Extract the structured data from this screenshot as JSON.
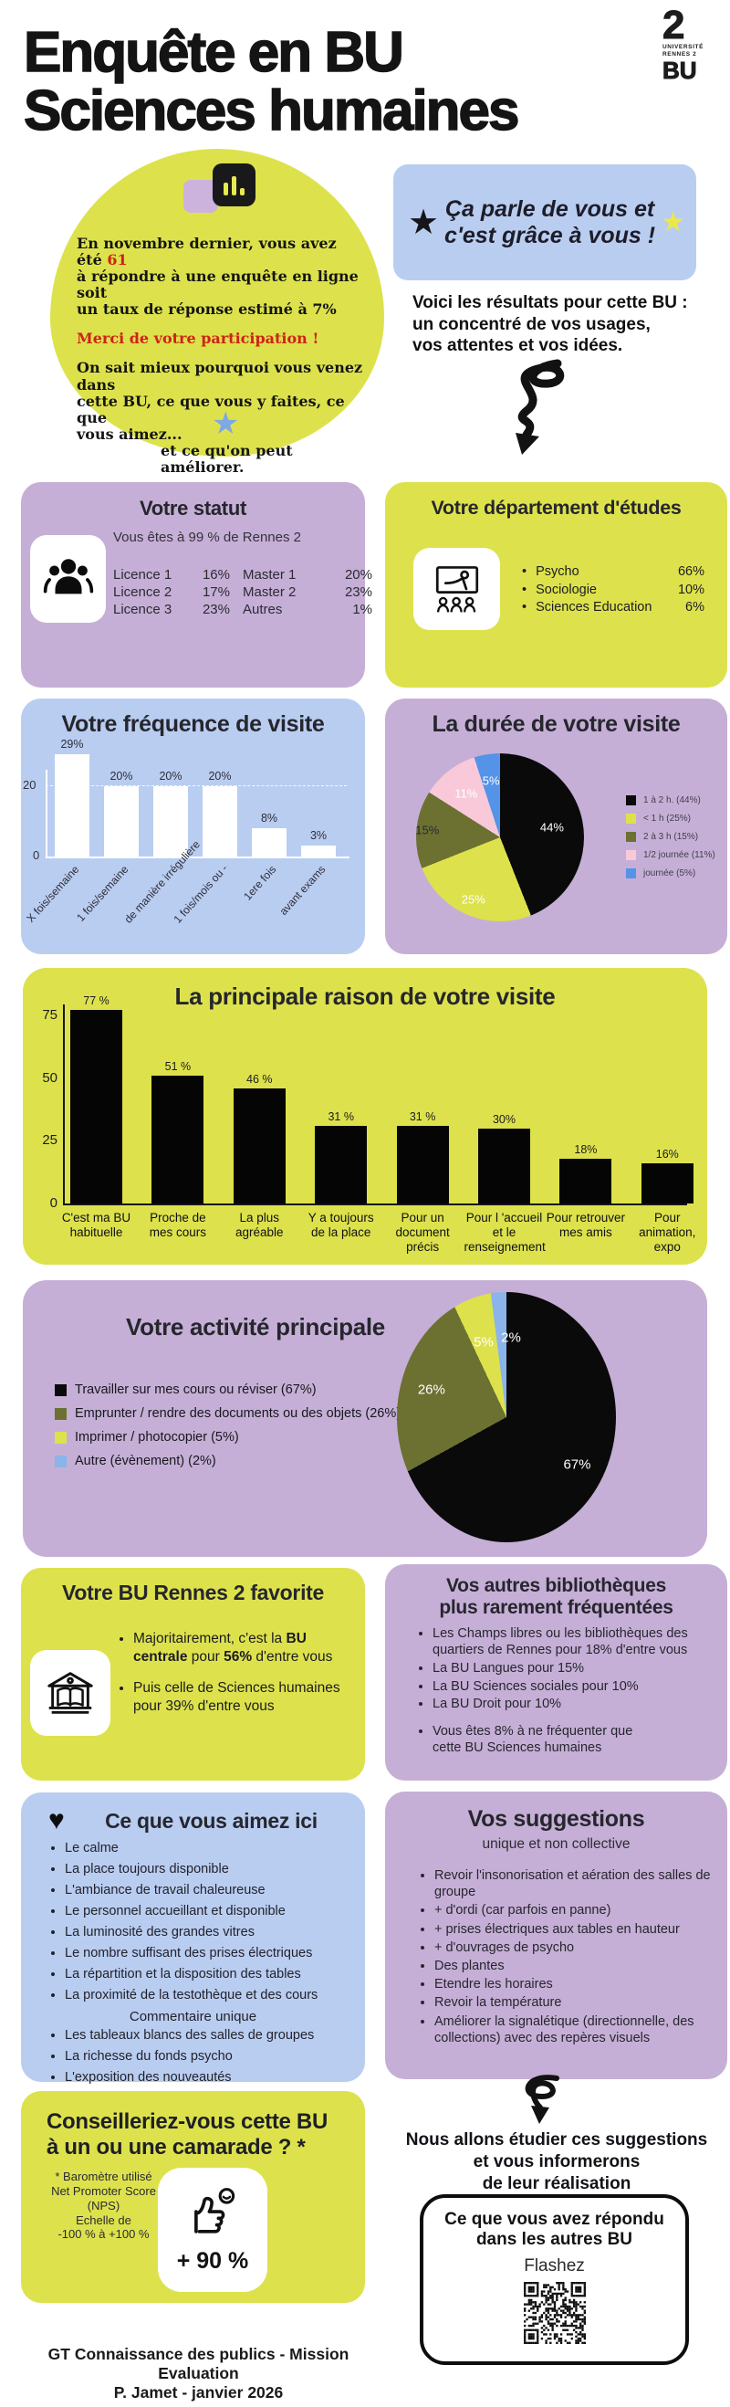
{
  "header": {
    "title": "Enquête en BU\nSciences humaines",
    "logo_numeral": "2",
    "logo_university": "UNIVERSITÉ\nRENNES 2",
    "logo_bu": "BU"
  },
  "intro": {
    "blob_p1_before": "En novembre dernier, vous avez été ",
    "blob_p1_num": "61",
    "blob_p1_after": "\nà répondre à une enquête en ligne soit\nun taux de réponse estimé à 7%",
    "blob_thanks": "Merci de votre participation !",
    "blob_p2": "On sait mieux pourquoi vous venez dans\ncette BU, ce que vous y faites, ce que\nvous aimez...",
    "blob_p2_end": "et ce qu'on peut améliorer.",
    "badge_text": "Ça parle de vous et\nc'est grâce à vous !",
    "results_text": "Voici les résultats pour cette BU :\nun concentré de vos usages,\nvos attentes et vos idées."
  },
  "statut": {
    "title": "Votre statut",
    "subtitle": "Vous êtes à 99 % de Rennes 2",
    "rows": [
      [
        "Licence 1",
        "16%",
        "Master 1",
        "20%"
      ],
      [
        "Licence 2",
        "17%",
        "Master 2",
        "23%"
      ],
      [
        "Licence 3",
        "23%",
        "Autres",
        "1%"
      ]
    ]
  },
  "departement": {
    "title": "Votre département d'études",
    "items": [
      {
        "label": "Psycho",
        "value": "66%"
      },
      {
        "label": "Sociologie",
        "value": "10%"
      },
      {
        "label": "Sciences Education",
        "value": "6%"
      }
    ]
  },
  "favorite": {
    "title": "Votre BU Rennes 2 favorite",
    "bullets": [
      [
        {
          "t": "Majoritairement, c'est la "
        },
        {
          "t": "BU centrale",
          "b": true
        },
        {
          "t": " pour  "
        },
        {
          "t": "56%",
          "b": true
        },
        {
          "t": " d'entre vous"
        }
      ],
      [
        {
          "t": "Puis celle de Sciences humaines pour 39% d'entre vous"
        }
      ]
    ]
  },
  "other_libs": {
    "title": "Vos autres bibliothèques\nplus rarement fréquentées",
    "bullets": [
      "Les Champs libres ou les bibliothèques des quartiers de Rennes pour 18% d'entre vous",
      "La BU Langues pour 15%",
      "La BU Sciences sociales pour 10%",
      "La BU Droit pour 10%"
    ],
    "footnote_bullet": "Vous êtes 8% à ne fréquenter que\ncette BU  Sciences humaines"
  },
  "likes": {
    "title": "Ce que vous aimez ici",
    "bullets": [
      "Le calme",
      "La place toujours disponible",
      "L'ambiance de travail chaleureuse",
      "Le personnel accueillant et disponible",
      "La luminosité des grandes vitres",
      "Le nombre suffisant des prises électriques",
      "La répartition et la disposition des tables",
      "La proximité de la testothèque et des cours"
    ],
    "subheading": "Commentaire unique",
    "bullets2": [
      "Les tableaux blancs des salles de groupes",
      "La richesse du fonds psycho",
      "L'exposition des nouveautés"
    ]
  },
  "suggestions": {
    "title": "Vos suggestions",
    "subtitle": "unique  et non collective",
    "bullets": [
      "Revoir l'insonorisation et aération des salles de groupe",
      "+ d'ordi (car parfois en panne)",
      "+ prises électriques aux tables en hauteur",
      "+ d'ouvrages de psycho",
      "Des plantes",
      "Etendre les horaires",
      "Revoir la température",
      "Améliorer la signalétique (directionnelle, des collections) avec des repères visuels"
    ]
  },
  "nps": {
    "title": "Conseilleriez-vous cette BU\nà un ou une camarade ? *",
    "note": "* Baromètre utilisé\nNet Promoter Score\n(NPS)\nEchelle de\n-100 % à +100 %",
    "score": "+ 90 %"
  },
  "followup": {
    "text": "Nous allons étudier ces suggestions\net vous informerons\nde leur réalisation",
    "qr_title": "Ce que vous avez répondu\ndans les autres BU",
    "qr_action": "Flashez"
  },
  "footer": {
    "line1": "GT Connaissance des publics - Mission Evaluation",
    "line2": "P. Jamet  - janvier 2026"
  },
  "colors": {
    "yellow": "#dde24c",
    "purple": "#c6afd6",
    "blue": "#b9cdf1",
    "red": "#cf2218",
    "black": "#0b0b0b",
    "pink": "#f9c9da",
    "olive": "#6c7132",
    "pie_blue": "#5593e8"
  },
  "chart_data": [
    {
      "id": "frequency",
      "type": "bar",
      "title": "Votre fréquence de visite",
      "categories": [
        "X fois/semaine",
        "1 fois/semaine",
        "de manière irrégulière",
        "1 fois/mois ou -",
        "1ere fois",
        "avant exams"
      ],
      "values": [
        29,
        20,
        20,
        20,
        8,
        3
      ],
      "value_labels": [
        "29%",
        "20%",
        "20%",
        "20%",
        "8%",
        "3%"
      ],
      "xlabel": "",
      "ylabel": "",
      "yticks": [
        0,
        20
      ],
      "ylim": [
        0,
        32
      ],
      "bar_color": "#ffffff",
      "grid": "dashed line at 20"
    },
    {
      "id": "duration",
      "type": "pie",
      "title": "La durée de votre visite",
      "slices": [
        {
          "label": "1 à 2 h. (44%)",
          "value": 44,
          "color": "#0a0a0a"
        },
        {
          "label": "< 1 h (25%)",
          "value": 25,
          "color": "#dde24c"
        },
        {
          "label": "2 à 3 h (15%)",
          "value": 15,
          "color": "#6c7132"
        },
        {
          "label": "1/2 journée (11%)",
          "value": 11,
          "color": "#f9c9da"
        },
        {
          "label": "journée (5%)",
          "value": 5,
          "color": "#5593e8"
        }
      ],
      "legend_position": "right"
    },
    {
      "id": "reason",
      "type": "bar",
      "title": "La principale raison de votre visite",
      "categories": [
        "C'est ma BU habituelle",
        "Proche de mes cours",
        "La plus agréable",
        "Y a toujours de la place",
        "Pour un document précis",
        "Pour l 'accueil et le renseignement",
        "Pour retrouver mes amis",
        "Pour animation, expo"
      ],
      "values": [
        77,
        51,
        46,
        31,
        31,
        30,
        18,
        16
      ],
      "value_labels": [
        "77 %",
        "51 %",
        "46 %",
        "31 %",
        "31 %",
        "30%",
        "18%",
        "16%"
      ],
      "xlabel": "",
      "ylabel": "",
      "yticks": [
        0,
        25,
        50,
        75
      ],
      "ylim": [
        0,
        85
      ],
      "bar_color": "#050505",
      "grid": "off"
    },
    {
      "id": "activity",
      "type": "pie",
      "title": "Votre activité principale",
      "slices": [
        {
          "label": "Travailler sur mes cours ou réviser (67%)",
          "value": 67,
          "color": "#0a0a0a"
        },
        {
          "label": "Emprunter / rendre des documents ou des objets (26%)",
          "value": 26,
          "color": "#6c7132"
        },
        {
          "label": "Imprimer / photocopier (5%)",
          "value": 5,
          "color": "#dde24c"
        },
        {
          "label": "Autre (évènement) (2%)",
          "value": 2,
          "color": "#8ab4ea"
        }
      ],
      "legend_position": "left"
    }
  ]
}
